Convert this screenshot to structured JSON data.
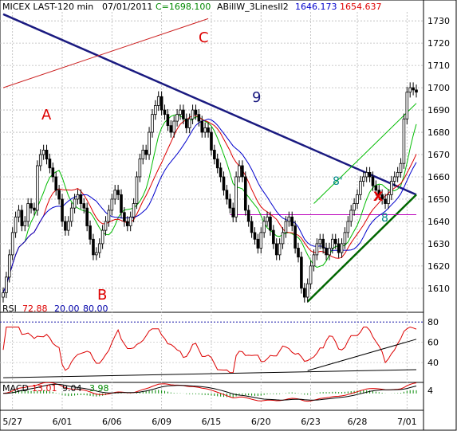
{
  "header": {
    "symbol": "MICEX LAST-120 min",
    "date": "07/01/2011",
    "close_label": "C=1698.100",
    "indicator": "ABillW_3LinesII2",
    "ind_val1": "1646.173",
    "ind_val2": "1654.637"
  },
  "rsi_header": {
    "name": "RSI",
    "value": "72.88",
    "low": "20.00",
    "high": "80.00"
  },
  "macd_header": {
    "name": "MACD",
    "v1": "13.01",
    "v2": "9.04",
    "v3": "3.98"
  },
  "annotations": {
    "a": "A",
    "b": "B",
    "c": "C",
    "nine": "9",
    "x": "X",
    "eight_a": "8'",
    "eight_b": "8"
  },
  "colors": {
    "price": "#000000",
    "ma_fast": "#00bb00",
    "ma_mid": "#dd0000",
    "ma_slow": "#0000cc",
    "trend": "#1a1a80",
    "support": "#006600",
    "level": "#bb00bb",
    "channel_upper": "#cc2222",
    "rsi": "#dd0000",
    "macd": "#dd0000",
    "signal": "#000000",
    "hist": "#008800",
    "rsi_level": "#0000aa",
    "annotation": "#dd0000",
    "nine": "#1a1a80",
    "teal": "#008888"
  },
  "chart_data": {
    "type": "candlestick",
    "price_ticks": [
      1610,
      1620,
      1630,
      1640,
      1650,
      1660,
      1670,
      1680,
      1690,
      1700,
      1710,
      1720,
      1730
    ],
    "price_range": [
      1601,
      1734
    ],
    "date_ticks": [
      {
        "label": "5/27",
        "index": 3
      },
      {
        "label": "6/01",
        "index": 19
      },
      {
        "label": "6/06",
        "index": 35
      },
      {
        "label": "6/09",
        "index": 51
      },
      {
        "label": "6/15",
        "index": 67
      },
      {
        "label": "6/20",
        "index": 83
      },
      {
        "label": "6/23",
        "index": 99
      },
      {
        "label": "6/28",
        "index": 114
      },
      {
        "label": "7/01",
        "index": 130
      }
    ],
    "bar_count": 134,
    "closes": [
      1608,
      1615,
      1625,
      1635,
      1642,
      1645,
      1638,
      1640,
      1648,
      1646,
      1645,
      1665,
      1670,
      1672,
      1668,
      1664,
      1660,
      1654,
      1650,
      1640,
      1636,
      1640,
      1646,
      1650,
      1652,
      1648,
      1646,
      1638,
      1632,
      1625,
      1626,
      1630,
      1636,
      1640,
      1645,
      1650,
      1654,
      1652,
      1644,
      1640,
      1638,
      1642,
      1648,
      1660,
      1668,
      1672,
      1670,
      1680,
      1688,
      1692,
      1696,
      1690,
      1688,
      1683,
      1680,
      1685,
      1688,
      1690,
      1686,
      1682,
      1686,
      1690,
      1688,
      1685,
      1680,
      1682,
      1680,
      1672,
      1668,
      1664,
      1660,
      1654,
      1650,
      1646,
      1642,
      1660,
      1665,
      1660,
      1645,
      1640,
      1635,
      1632,
      1628,
      1635,
      1640,
      1642,
      1636,
      1630,
      1625,
      1630,
      1635,
      1640,
      1642,
      1638,
      1628,
      1624,
      1610,
      1606,
      1612,
      1620,
      1625,
      1630,
      1632,
      1628,
      1625,
      1628,
      1632,
      1630,
      1626,
      1630,
      1635,
      1640,
      1645,
      1648,
      1652,
      1658,
      1660,
      1662,
      1660,
      1656,
      1654,
      1652,
      1650,
      1648,
      1652,
      1658,
      1660,
      1662,
      1666,
      1686,
      1698,
      1700,
      1699,
      1698
    ],
    "ranges": [
      8,
      8,
      8,
      8,
      8,
      8,
      8,
      8,
      8,
      8,
      8,
      8,
      8,
      8,
      8,
      8,
      8,
      8,
      8,
      8,
      8,
      8,
      8,
      8,
      8,
      8,
      8,
      8,
      8,
      8,
      8,
      8,
      8,
      8,
      8,
      8,
      8,
      8,
      8,
      8,
      8,
      8,
      8,
      8,
      8,
      8,
      8,
      8,
      8,
      8,
      8,
      8,
      8,
      8,
      8,
      8,
      8,
      8,
      8,
      8,
      8,
      8,
      8,
      8,
      8,
      8,
      8,
      8,
      8,
      8,
      8,
      8,
      8,
      8,
      8,
      8,
      8,
      8,
      8,
      8,
      8,
      8,
      8,
      8,
      8,
      8,
      8,
      8,
      8,
      8,
      8,
      8,
      8,
      8,
      8,
      8,
      8,
      8,
      8,
      8,
      8,
      8,
      8,
      8,
      8,
      8,
      8,
      8,
      8,
      8,
      8,
      8,
      8,
      8,
      8,
      8,
      8,
      8,
      8,
      8,
      8,
      8,
      8,
      8,
      8,
      8,
      8,
      8,
      8,
      8,
      8,
      8,
      8,
      8
    ],
    "ma_periods": [
      8,
      14,
      20
    ],
    "overlay_lines": [
      {
        "name": "downtrend",
        "from": [
          0,
          1733
        ],
        "to": [
          133,
          1652
        ]
      },
      {
        "name": "upper-channel",
        "from": [
          0,
          1700
        ],
        "to": [
          66,
          1731
        ]
      },
      {
        "name": "support",
        "from": [
          98,
          1604
        ],
        "to": [
          133,
          1652
        ]
      },
      {
        "name": "horizontal-level",
        "from": [
          73,
          1643
        ],
        "to": [
          133,
          1643
        ]
      },
      {
        "name": "rising-channel",
        "from": [
          100,
          1648
        ],
        "to": [
          133,
          1693
        ]
      }
    ],
    "rsi": {
      "ticks": [
        40,
        60,
        80
      ],
      "range": [
        22,
        88
      ],
      "level": 80,
      "trend_lines": [
        {
          "from": [
            98,
            32
          ],
          "to": [
            133,
            63
          ]
        },
        {
          "from": [
            0,
            25
          ],
          "to": [
            133,
            33
          ]
        }
      ]
    },
    "macd": {
      "ticks": [
        4
      ],
      "range": [
        -22,
        14
      ]
    }
  }
}
